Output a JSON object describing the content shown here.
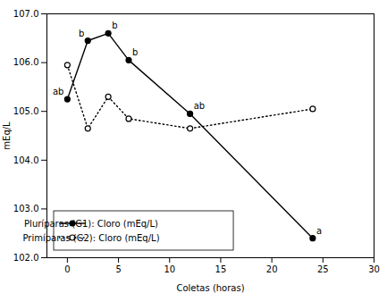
{
  "chart_data": {
    "type": "line",
    "x": [
      0,
      2,
      4,
      6,
      12,
      24
    ],
    "series": [
      {
        "name": "Pluríparas (G1): Cloro (mEq/L)",
        "color": "#000000",
        "values": [
          105.25,
          106.45,
          106.6,
          106.05,
          104.95,
          102.4
        ],
        "line_style": "solid",
        "marker": "filled_circle"
      },
      {
        "name": "Primíparas (G2): Cloro (mEq/L)",
        "color": "#000000",
        "values": [
          105.95,
          104.65,
          105.3,
          104.85,
          104.65,
          105.05
        ],
        "line_style": "dotted",
        "marker": "open_circle"
      }
    ],
    "annotations": [
      {
        "x": 0,
        "y": 105.25,
        "text": "ab"
      },
      {
        "x": 2,
        "y": 106.45,
        "text": "b"
      },
      {
        "x": 4,
        "y": 106.6,
        "text": "b"
      },
      {
        "x": 6,
        "y": 106.05,
        "text": "b"
      },
      {
        "x": 12,
        "y": 104.95,
        "text": "ab"
      },
      {
        "x": 24,
        "y": 102.4,
        "text": "a"
      }
    ],
    "xlabel": "Coletas (horas)",
    "ylabel": "mEq/L",
    "xlim": [
      -2,
      30
    ],
    "ylim": [
      102,
      107
    ],
    "xticks": [
      0,
      5,
      10,
      15,
      20,
      25,
      30
    ],
    "yticks": [
      102,
      103,
      104,
      105,
      106,
      107
    ],
    "legend": "lower left",
    "grid": false
  }
}
